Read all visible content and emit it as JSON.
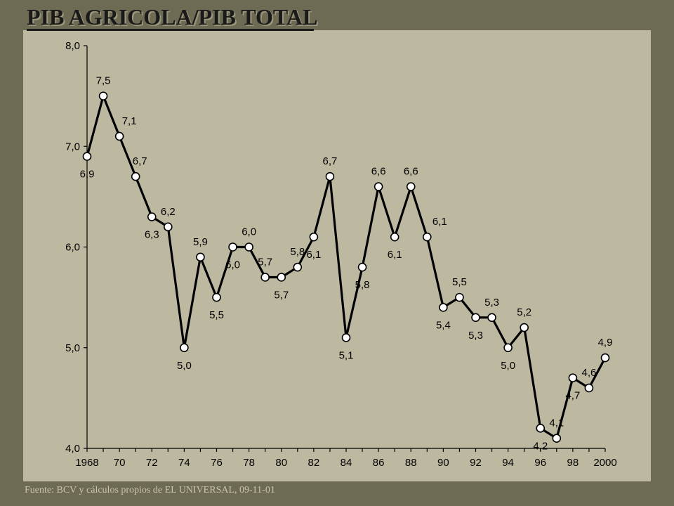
{
  "slide": {
    "title": "PIB AGRICOLA/PIB TOTAL",
    "source": "Fuente: BCV  y  cálculos propios de EL UNIVERSAL,  09-11-01"
  },
  "colors": {
    "background": "#6e6b55",
    "plot_area": "#bdb9a1",
    "line": "#000000",
    "marker_fill": "#ffffff"
  },
  "chart_data": {
    "type": "line",
    "title": "PIB AGRICOLA/PIB TOTAL",
    "xlabel": "",
    "ylabel": "",
    "x": [
      1968,
      1969,
      1970,
      1971,
      1972,
      1973,
      1974,
      1975,
      1976,
      1977,
      1978,
      1979,
      1980,
      1981,
      1982,
      1983,
      1984,
      1985,
      1986,
      1987,
      1988,
      1989,
      1990,
      1991,
      1992,
      1993,
      1994,
      1995,
      1996,
      1997,
      1998,
      1999,
      2000
    ],
    "series": [
      {
        "values": [
          6.9,
          7.5,
          7.1,
          6.7,
          6.3,
          6.2,
          5.0,
          5.9,
          5.5,
          6.0,
          6.0,
          5.7,
          5.7,
          5.8,
          6.1,
          6.7,
          5.1,
          5.8,
          6.6,
          6.1,
          6.6,
          6.1,
          5.4,
          5.5,
          5.3,
          5.3,
          5.0,
          5.2,
          4.2,
          4.1,
          4.7,
          4.6,
          4.9
        ],
        "data_labels": [
          "6,9",
          "7,5",
          "7,1",
          "6,7",
          "6,3",
          "6,2",
          "5,0",
          "5,9",
          "5,5",
          "6,0",
          "6,0",
          "5,7",
          "5,7",
          "5,8",
          "6,1",
          "6,7",
          "5,1",
          "5,8",
          "6,6",
          "6,1",
          "6,6",
          "6,1",
          "5,4",
          "5,5",
          "5,3",
          "5,3",
          "5,0",
          "5,2",
          "4,2",
          "4,1",
          "4,7",
          "4,6",
          "4,9"
        ]
      }
    ],
    "xticks": [
      1968,
      1970,
      1972,
      1974,
      1976,
      1978,
      1980,
      1982,
      1984,
      1986,
      1988,
      1990,
      1992,
      1994,
      1996,
      1998,
      2000
    ],
    "xtick_labels": [
      "1968",
      "70",
      "72",
      "74",
      "76",
      "78",
      "80",
      "82",
      "84",
      "86",
      "88",
      "90",
      "92",
      "94",
      "96",
      "98",
      "2000"
    ],
    "yticks": [
      4.0,
      5.0,
      6.0,
      7.0,
      8.0
    ],
    "ytick_labels": [
      "4,0",
      "5,0",
      "6,0",
      "7,0",
      "8,0"
    ],
    "xlim": [
      1968,
      2000
    ],
    "ylim": [
      4.0,
      8.0
    ],
    "grid": false,
    "legend": "none"
  }
}
